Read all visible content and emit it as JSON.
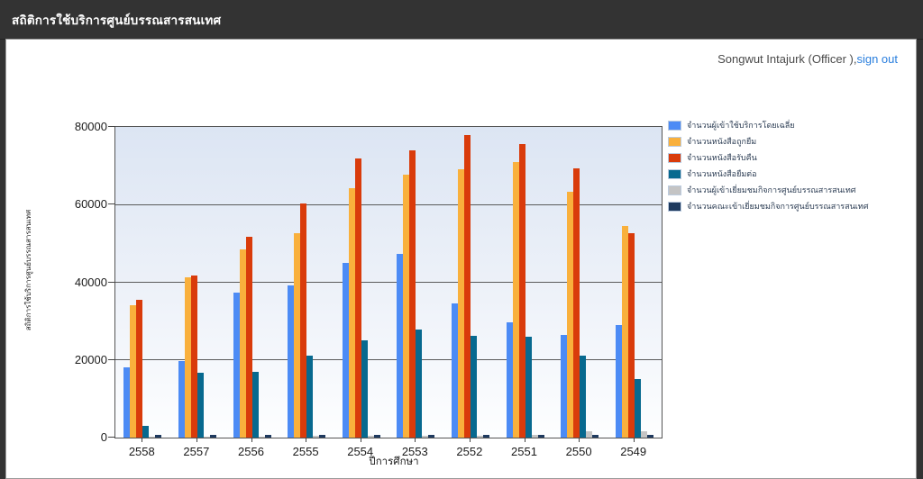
{
  "header": {
    "title": "สถิติการใช้บริการศูนย์บรรณสารสนเทศ"
  },
  "user": {
    "name": "Songwut Intajurk  (Officer ),",
    "sign_out": "sign out"
  },
  "colors": {
    "header_bg": "#333333",
    "link": "#2a7fde",
    "plot_gradient_top": "#dce5f3",
    "series_palette": [
      "#4c8bf5",
      "#f9b03c",
      "#d93b0b",
      "#07698f",
      "#c4c4c4",
      "#1e3a5f"
    ]
  },
  "chart_data": {
    "type": "bar",
    "title": "",
    "xlabel": "ปีการศึกษา",
    "ylabel": "สถิติการใช้บริการศูนย์บรรณสารสนเทศ",
    "categories": [
      "2558",
      "2557",
      "2556",
      "2555",
      "2554",
      "2553",
      "2552",
      "2551",
      "2550",
      "2549"
    ],
    "ylim": [
      0,
      80000
    ],
    "ytick_step": 20000,
    "grid": true,
    "legend_position": "top-right",
    "series": [
      {
        "name": "จำนวนผู้เข้าใช้บริการโดยเฉลี่ย",
        "color": "#4c8bf5",
        "values": [
          18000,
          19800,
          37300,
          39200,
          45000,
          47200,
          34600,
          29800,
          26500,
          28900
        ]
      },
      {
        "name": "จำนวนหนังสือถูกยืม",
        "color": "#f9b03c",
        "values": [
          34200,
          41300,
          48500,
          52700,
          64300,
          67800,
          69200,
          70900,
          63300,
          54400
        ]
      },
      {
        "name": "จำนวนหนังสือรับคืน",
        "color": "#d93b0b",
        "values": [
          35500,
          41700,
          51800,
          60200,
          71800,
          74000,
          77900,
          75500,
          69400,
          52700
        ]
      },
      {
        "name": "จำนวนหนังสือยืมต่อ",
        "color": "#07698f",
        "values": [
          3000,
          16600,
          17000,
          21200,
          25000,
          27800,
          26300,
          25900,
          21200,
          15000
        ]
      },
      {
        "name": "จำนวนผู้เข้าเยี่ยมชมกิจการศูนย์บรรณสารสนเทศ",
        "color": "#c4c4c4",
        "values": [
          200,
          300,
          300,
          400,
          400,
          500,
          500,
          600,
          1700,
          1600
        ]
      },
      {
        "name": "จำนวนคณะเข้าเยี่ยมชมกิจการศูนย์บรรณสารสนเทศ",
        "color": "#1e3a5f",
        "values": [
          600,
          800,
          700,
          700,
          700,
          800,
          600,
          600,
          800,
          800
        ]
      }
    ]
  }
}
